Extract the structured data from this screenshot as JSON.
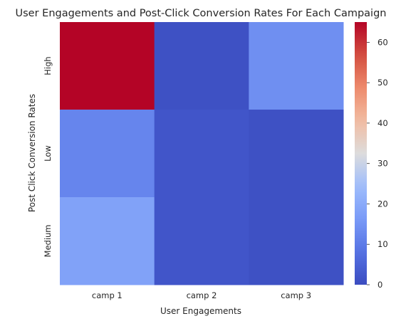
{
  "chart_data": {
    "type": "heatmap",
    "title": "User Engagements and Post-Click Conversion Rates For Each Campaign",
    "xlabel": "User Engagements",
    "ylabel": "Post Click Conversion Rates",
    "x_categories": [
      "camp 1",
      "camp 2",
      "camp 3"
    ],
    "y_categories": [
      "High",
      "Low",
      "Medium"
    ],
    "values": [
      [
        65,
        1,
        14
      ],
      [
        12,
        2,
        1
      ],
      [
        18,
        2,
        1
      ]
    ],
    "colorbar": {
      "colormap": "coolwarm",
      "range": [
        0,
        65
      ],
      "ticks": [
        0,
        10,
        20,
        30,
        40,
        50,
        60
      ]
    }
  }
}
